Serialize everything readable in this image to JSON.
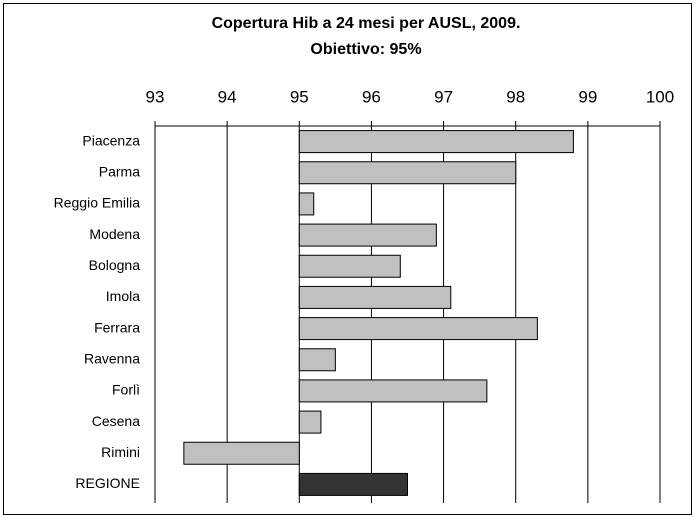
{
  "chart_data": {
    "type": "bar",
    "orientation": "horizontal",
    "title": [
      "Copertura Hib a 24 mesi per AUSL, 2009.",
      "Obiettivo: 95%"
    ],
    "categories": [
      "Piacenza",
      "Parma",
      "Reggio Emilia",
      "Modena",
      "Bologna",
      "Imola",
      "Ferrara",
      "Ravenna",
      "Forlì",
      "Cesena",
      "Rimini",
      "REGIONE"
    ],
    "values": [
      98.8,
      98.0,
      95.2,
      96.9,
      96.4,
      97.1,
      98.3,
      95.5,
      97.6,
      95.3,
      93.4,
      96.5
    ],
    "colors": [
      "#c0c0c0",
      "#c0c0c0",
      "#c0c0c0",
      "#c0c0c0",
      "#c0c0c0",
      "#c0c0c0",
      "#c0c0c0",
      "#c0c0c0",
      "#c0c0c0",
      "#c0c0c0",
      "#c0c0c0",
      "#333333"
    ],
    "baseline": 95,
    "xlim": [
      93,
      100
    ],
    "xticks": [
      93,
      94,
      95,
      96,
      97,
      98,
      99,
      100
    ],
    "grid": true
  }
}
